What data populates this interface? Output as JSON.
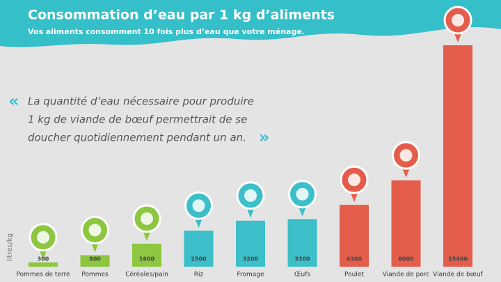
{
  "chart_data": {
    "type": "bar",
    "title": "Consommation d’eau par 1 kg d’aliments",
    "subtitle": "Vos aliments consomment 10 fois plus d’eau que votre ménage.",
    "quote": [
      "La quantité d’eau nécessaire pour produire",
      "1 kg de viande de bœuf permettrait de se",
      "doucher quotidiennement pendant un an."
    ],
    "y_label": "litres/kg",
    "categories": [
      "Pommes de terre",
      "Pommes",
      "Céréales/pain",
      "Riz",
      "Fromage",
      "Œufs",
      "Poulet",
      "Viande de porc",
      "Viande de bœuf"
    ],
    "values": [
      300,
      800,
      1600,
      2500,
      3200,
      3300,
      4300,
      6000,
      15400
    ],
    "colors": [
      "#8dc63f",
      "#8dc63f",
      "#8dc63f",
      "#3cbfc8",
      "#3cbfc8",
      "#3cbfc8",
      "#e45d4b",
      "#e45d4b",
      "#e45d4b"
    ]
  }
}
